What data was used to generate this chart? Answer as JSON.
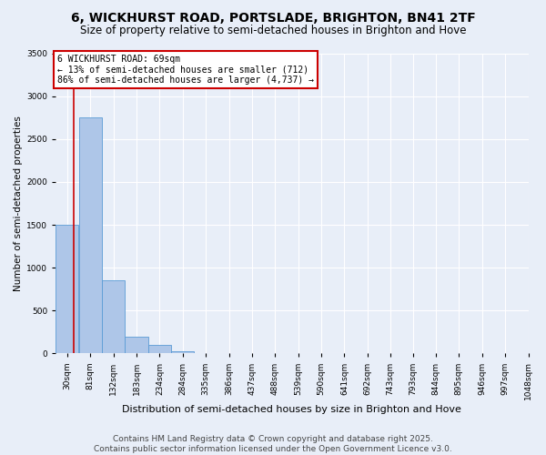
{
  "title": "6, WICKHURST ROAD, PORTSLADE, BRIGHTON, BN41 2TF",
  "subtitle": "Size of property relative to semi-detached houses in Brighton and Hove",
  "xlabel": "Distribution of semi-detached houses by size in Brighton and Hove",
  "ylabel": "Number of semi-detached properties",
  "footer_line1": "Contains HM Land Registry data © Crown copyright and database right 2025.",
  "footer_line2": "Contains public sector information licensed under the Open Government Licence v3.0.",
  "bin_edges": [
    30,
    81,
    132,
    183,
    234,
    285,
    336,
    387,
    438,
    489,
    540,
    591,
    642,
    693,
    744,
    793,
    844,
    895,
    946,
    997,
    1048
  ],
  "bin_labels": [
    "30sqm",
    "81sqm",
    "132sqm",
    "183sqm",
    "234sqm",
    "284sqm",
    "335sqm",
    "386sqm",
    "437sqm",
    "488sqm",
    "539sqm",
    "590sqm",
    "641sqm",
    "692sqm",
    "743sqm",
    "793sqm",
    "844sqm",
    "895sqm",
    "946sqm",
    "997sqm",
    "1048sqm"
  ],
  "bar_values": [
    1500,
    2750,
    850,
    200,
    100,
    30,
    5,
    2,
    1,
    0,
    0,
    0,
    0,
    0,
    0,
    0,
    0,
    0,
    0,
    0
  ],
  "bar_color": "#aec6e8",
  "bar_edgecolor": "#5a9bd5",
  "property_size": 69,
  "property_label": "6 WICKHURST ROAD: 69sqm",
  "pct_smaller": 13,
  "pct_larger": 86,
  "n_smaller": 712,
  "n_larger": 4737,
  "annotation_box_facecolor": "#ffffff",
  "annotation_box_edgecolor": "#cc0000",
  "vline_color": "#cc0000",
  "ylim": [
    0,
    3500
  ],
  "yticks": [
    0,
    500,
    1000,
    1500,
    2000,
    2500,
    3000,
    3500
  ],
  "background_color": "#e8eef8",
  "grid_color": "#d0d8e8",
  "title_fontsize": 10,
  "subtitle_fontsize": 8.5,
  "xlabel_fontsize": 8,
  "ylabel_fontsize": 7.5,
  "tick_fontsize": 6.5,
  "annot_fontsize": 7,
  "footer_fontsize": 6.5
}
